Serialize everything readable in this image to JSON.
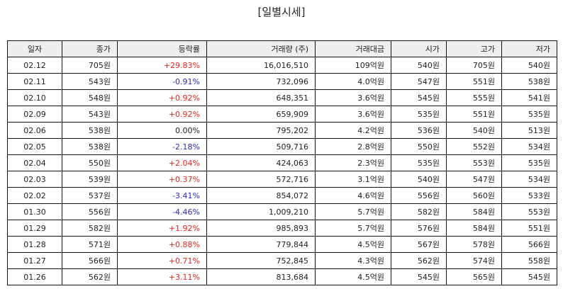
{
  "title": "[일별시세]",
  "headers": [
    "일자",
    "종가",
    "등락률",
    "거래량 (주)",
    "거래대금",
    "시가",
    "고가",
    "저가"
  ],
  "colors": {
    "up": "#e5261f",
    "down": "#2b2bc8",
    "flat": "#222222"
  },
  "rows": [
    {
      "date": "02.12",
      "close": "705원",
      "change": "+29.83%",
      "dir": "up",
      "volume": "16,016,510",
      "amount": "109억원",
      "open": "540원",
      "high": "705원",
      "low": "540원"
    },
    {
      "date": "02.11",
      "close": "543원",
      "change": "-0.91%",
      "dir": "down",
      "volume": "732,096",
      "amount": "4.0억원",
      "open": "547원",
      "high": "551원",
      "low": "538원"
    },
    {
      "date": "02.10",
      "close": "548원",
      "change": "+0.92%",
      "dir": "up",
      "volume": "648,351",
      "amount": "3.6억원",
      "open": "545원",
      "high": "555원",
      "low": "541원"
    },
    {
      "date": "02.09",
      "close": "543원",
      "change": "+0.92%",
      "dir": "up",
      "volume": "659,909",
      "amount": "3.6억원",
      "open": "535원",
      "high": "551원",
      "low": "535원"
    },
    {
      "date": "02.06",
      "close": "538원",
      "change": "0.00%",
      "dir": "flat",
      "volume": "795,202",
      "amount": "4.2억원",
      "open": "536원",
      "high": "540원",
      "low": "513원"
    },
    {
      "date": "02.05",
      "close": "538원",
      "change": "-2.18%",
      "dir": "down",
      "volume": "509,716",
      "amount": "2.8억원",
      "open": "550원",
      "high": "552원",
      "low": "534원"
    },
    {
      "date": "02.04",
      "close": "550원",
      "change": "+2.04%",
      "dir": "up",
      "volume": "424,063",
      "amount": "2.3억원",
      "open": "535원",
      "high": "553원",
      "low": "535원"
    },
    {
      "date": "02.03",
      "close": "539원",
      "change": "+0.37%",
      "dir": "up",
      "volume": "572,716",
      "amount": "3.1억원",
      "open": "540원",
      "high": "547원",
      "low": "534원"
    },
    {
      "date": "02.02",
      "close": "537원",
      "change": "-3.41%",
      "dir": "down",
      "volume": "854,072",
      "amount": "4.6억원",
      "open": "556원",
      "high": "560원",
      "low": "533원"
    },
    {
      "date": "01.30",
      "close": "556원",
      "change": "-4.46%",
      "dir": "down",
      "volume": "1,009,210",
      "amount": "5.7억원",
      "open": "582원",
      "high": "584원",
      "low": "553원"
    },
    {
      "date": "01.29",
      "close": "582원",
      "change": "+1.92%",
      "dir": "up",
      "volume": "985,893",
      "amount": "5.7억원",
      "open": "576원",
      "high": "584원",
      "low": "551원"
    },
    {
      "date": "01.28",
      "close": "571원",
      "change": "+0.88%",
      "dir": "up",
      "volume": "779,844",
      "amount": "4.5억원",
      "open": "567원",
      "high": "578원",
      "low": "566원"
    },
    {
      "date": "01.27",
      "close": "566원",
      "change": "+0.71%",
      "dir": "up",
      "volume": "752,845",
      "amount": "4.3억원",
      "open": "562원",
      "high": "574원",
      "low": "558원"
    },
    {
      "date": "01.26",
      "close": "562원",
      "change": "+3.11%",
      "dir": "up",
      "volume": "813,684",
      "amount": "4.5억원",
      "open": "545원",
      "high": "565원",
      "low": "545원"
    }
  ]
}
